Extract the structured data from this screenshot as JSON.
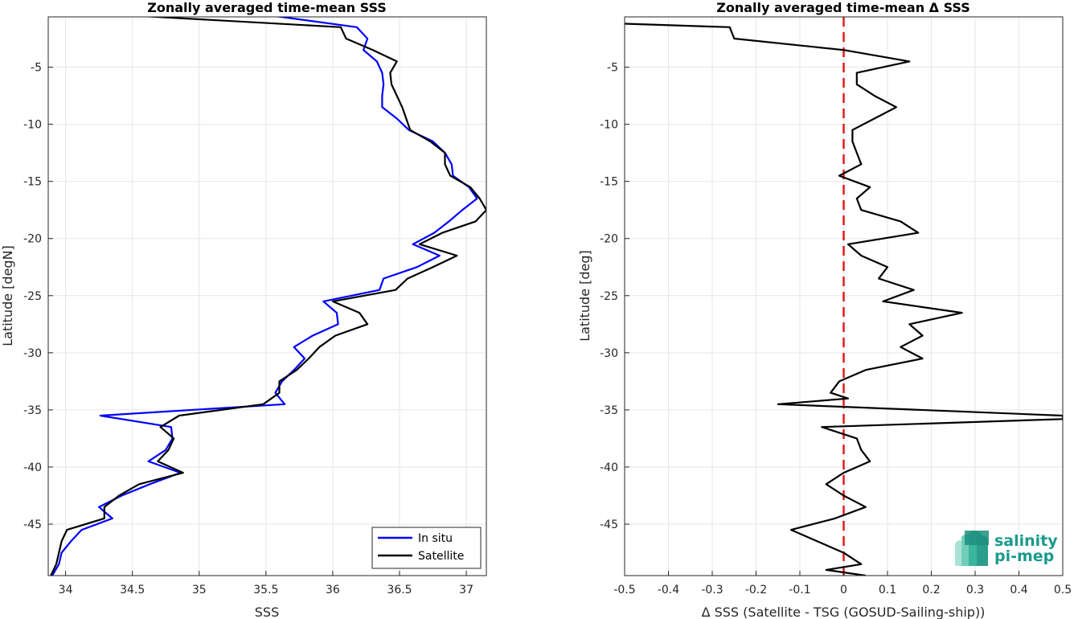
{
  "chart_data": [
    {
      "type": "line",
      "title": "Zonally averaged time-mean SSS",
      "xlabel": "SSS",
      "ylabel": "Latitude [degN]",
      "xlim": [
        33.87,
        37.15
      ],
      "ylim": [
        -49.5,
        -0.6
      ],
      "xticks": [
        34,
        34.5,
        35,
        35.5,
        36,
        36.5,
        37
      ],
      "xtick_labels": [
        "34",
        "34.5",
        "35",
        "35.5",
        "36",
        "36.5",
        "37"
      ],
      "yticks": [
        -5,
        -10,
        -15,
        -20,
        -25,
        -30,
        -35,
        -40,
        -45
      ],
      "ytick_labels": [
        "-5",
        "-10",
        "-15",
        "-20",
        "-25",
        "-30",
        "-35",
        "-40",
        "-45"
      ],
      "grid": true,
      "legend_position": "bottom-right",
      "series": [
        {
          "name": "In situ",
          "color": "#0000ff",
          "points": [
            [
              35.55,
              -0.5
            ],
            [
              36.18,
              -1.5
            ],
            [
              36.26,
              -2.5
            ],
            [
              36.23,
              -3.5
            ],
            [
              36.33,
              -4.5
            ],
            [
              36.37,
              -5.5
            ],
            [
              36.38,
              -6.5
            ],
            [
              36.37,
              -7.5
            ],
            [
              36.37,
              -8.5
            ],
            [
              36.48,
              -9.5
            ],
            [
              36.57,
              -10.5
            ],
            [
              36.75,
              -11.5
            ],
            [
              36.84,
              -12.5
            ],
            [
              36.89,
              -13.5
            ],
            [
              36.9,
              -14.5
            ],
            [
              37.02,
              -15.5
            ],
            [
              37.08,
              -16.5
            ],
            [
              36.97,
              -17.5
            ],
            [
              36.87,
              -18.5
            ],
            [
              36.76,
              -19.5
            ],
            [
              36.6,
              -20.5
            ],
            [
              36.8,
              -21.5
            ],
            [
              36.63,
              -22.5
            ],
            [
              36.38,
              -23.5
            ],
            [
              36.35,
              -24.5
            ],
            [
              35.93,
              -25.5
            ],
            [
              36.03,
              -26.5
            ],
            [
              36.04,
              -27.5
            ],
            [
              35.85,
              -28.5
            ],
            [
              35.71,
              -29.5
            ],
            [
              35.79,
              -30.5
            ],
            [
              35.71,
              -31.5
            ],
            [
              35.62,
              -32.5
            ],
            [
              35.57,
              -33.5
            ],
            [
              35.64,
              -34.5
            ],
            [
              34.26,
              -35.5
            ],
            [
              34.79,
              -36.5
            ],
            [
              34.8,
              -37.5
            ],
            [
              34.75,
              -38.5
            ],
            [
              34.62,
              -39.5
            ],
            [
              34.86,
              -40.5
            ],
            [
              34.63,
              -41.5
            ],
            [
              34.42,
              -42.5
            ],
            [
              34.25,
              -43.5
            ],
            [
              34.35,
              -44.5
            ],
            [
              34.12,
              -45.5
            ],
            [
              34.04,
              -46.5
            ],
            [
              33.97,
              -47.5
            ],
            [
              33.95,
              -48.5
            ],
            [
              33.9,
              -49.5
            ]
          ]
        },
        {
          "name": "Satellite",
          "color": "#000000",
          "points": [
            [
              34.53,
              -0.5
            ],
            [
              36.06,
              -1.5
            ],
            [
              36.1,
              -2.5
            ],
            [
              36.3,
              -3.5
            ],
            [
              36.48,
              -4.5
            ],
            [
              36.43,
              -5.5
            ],
            [
              36.44,
              -6.5
            ],
            [
              36.48,
              -7.5
            ],
            [
              36.52,
              -8.5
            ],
            [
              36.55,
              -9.5
            ],
            [
              36.58,
              -10.5
            ],
            [
              36.73,
              -11.5
            ],
            [
              36.84,
              -12.5
            ],
            [
              36.84,
              -13.5
            ],
            [
              36.88,
              -14.5
            ],
            [
              37.03,
              -15.5
            ],
            [
              37.1,
              -16.5
            ],
            [
              37.15,
              -17.5
            ],
            [
              37.07,
              -18.5
            ],
            [
              36.82,
              -19.5
            ],
            [
              36.65,
              -20.5
            ],
            [
              36.93,
              -21.5
            ],
            [
              36.75,
              -22.5
            ],
            [
              36.56,
              -23.5
            ],
            [
              36.47,
              -24.5
            ],
            [
              36.0,
              -25.5
            ],
            [
              36.2,
              -26.5
            ],
            [
              36.26,
              -27.5
            ],
            [
              36.02,
              -28.5
            ],
            [
              35.9,
              -29.5
            ],
            [
              35.82,
              -30.5
            ],
            [
              35.73,
              -31.5
            ],
            [
              35.6,
              -32.5
            ],
            [
              35.6,
              -33.5
            ],
            [
              35.48,
              -34.5
            ],
            [
              34.85,
              -35.5
            ],
            [
              34.71,
              -36.5
            ],
            [
              34.81,
              -37.5
            ],
            [
              34.77,
              -38.5
            ],
            [
              34.69,
              -39.5
            ],
            [
              34.88,
              -40.5
            ],
            [
              34.55,
              -41.5
            ],
            [
              34.4,
              -42.5
            ],
            [
              34.29,
              -43.5
            ],
            [
              34.29,
              -44.5
            ],
            [
              34.01,
              -45.5
            ],
            [
              33.97,
              -46.5
            ],
            [
              33.95,
              -47.5
            ],
            [
              33.93,
              -48.5
            ],
            [
              33.89,
              -49.5
            ]
          ]
        }
      ]
    },
    {
      "type": "line",
      "title": "Zonally averaged time-mean Δ SSS",
      "xlabel": "Δ SSS (Satellite - TSG (GOSUD-Sailing-ship))",
      "ylabel": "Latitude [deg]",
      "xlim": [
        -0.5,
        0.5
      ],
      "ylim": [
        -49.5,
        -0.6
      ],
      "xticks": [
        -0.5,
        -0.4,
        -0.3,
        -0.2,
        -0.1,
        0,
        0.1,
        0.2,
        0.3,
        0.4,
        0.5
      ],
      "xtick_labels": [
        "-0.5",
        "-0.4",
        "-0.3",
        "-0.2",
        "-0.1",
        "0",
        "0.1",
        "0.2",
        "0.3",
        "0.4",
        "0.5"
      ],
      "yticks": [
        -5,
        -10,
        -15,
        -20,
        -25,
        -30,
        -35,
        -40,
        -45
      ],
      "ytick_labels": [
        "-5",
        "-10",
        "-15",
        "-20",
        "-25",
        "-30",
        "-35",
        "-40",
        "-45"
      ],
      "grid": true,
      "reference_line": {
        "x": 0,
        "color": "#e31a1c",
        "style": "dashed"
      },
      "series": [
        {
          "color": "#000000",
          "points": [
            [
              -0.5,
              -1.2
            ],
            [
              -0.26,
              -1.5
            ],
            [
              -0.25,
              -2.5
            ],
            [
              0.0,
              -3.5
            ],
            [
              0.15,
              -4.5
            ],
            [
              0.03,
              -5.5
            ],
            [
              0.03,
              -6.5
            ],
            [
              0.07,
              -7.5
            ],
            [
              0.12,
              -8.5
            ],
            [
              0.07,
              -9.5
            ],
            [
              0.02,
              -10.5
            ],
            [
              0.02,
              -11.5
            ],
            [
              0.03,
              -12.5
            ],
            [
              0.04,
              -13.5
            ],
            [
              -0.01,
              -14.5
            ],
            [
              0.06,
              -15.5
            ],
            [
              0.03,
              -16.5
            ],
            [
              0.04,
              -17.5
            ],
            [
              0.13,
              -18.5
            ],
            [
              0.17,
              -19.5
            ],
            [
              0.01,
              -20.5
            ],
            [
              0.04,
              -21.5
            ],
            [
              0.1,
              -22.5
            ],
            [
              0.08,
              -23.5
            ],
            [
              0.16,
              -24.5
            ],
            [
              0.09,
              -25.5
            ],
            [
              0.27,
              -26.5
            ],
            [
              0.15,
              -27.5
            ],
            [
              0.18,
              -28.5
            ],
            [
              0.13,
              -29.5
            ],
            [
              0.18,
              -30.5
            ],
            [
              0.05,
              -31.5
            ],
            [
              -0.01,
              -32.5
            ],
            [
              -0.03,
              -33.5
            ],
            [
              0.01,
              -34.0
            ],
            [
              -0.15,
              -34.5
            ],
            [
              0.5,
              -35.5
            ],
            [
              0.5,
              -35.8
            ],
            [
              -0.05,
              -36.5
            ],
            [
              0.03,
              -37.5
            ],
            [
              0.04,
              -38.5
            ],
            [
              0.06,
              -39.5
            ],
            [
              0.0,
              -40.5
            ],
            [
              -0.04,
              -41.5
            ],
            [
              0.0,
              -42.5
            ],
            [
              0.05,
              -43.5
            ],
            [
              -0.02,
              -44.5
            ],
            [
              -0.12,
              -45.5
            ],
            [
              -0.06,
              -46.5
            ],
            [
              0.0,
              -47.5
            ],
            [
              0.04,
              -48.5
            ],
            [
              -0.04,
              -49.0
            ],
            [
              0.05,
              -49.5
            ]
          ]
        }
      ]
    }
  ],
  "legend": {
    "items": [
      {
        "label": "In situ",
        "color": "#0000ff"
      },
      {
        "label": "Satellite",
        "color": "#000000"
      }
    ]
  },
  "logo": {
    "line1": "salinity",
    "line2": "pi-mep"
  }
}
